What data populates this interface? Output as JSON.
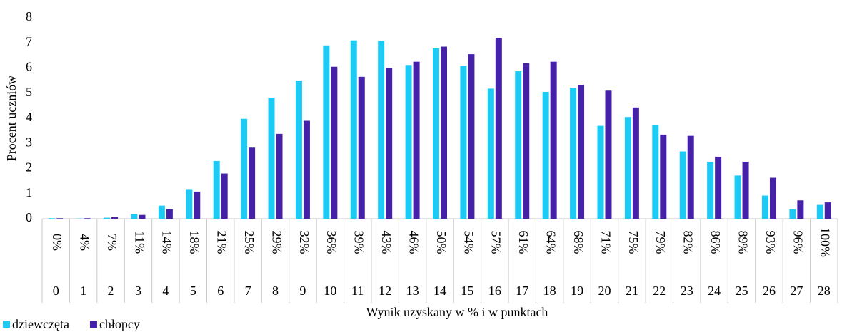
{
  "chart_data": {
    "type": "bar",
    "x_label": "Wynik uzyskany w % i w punktach",
    "y_label": "Procent uczniów",
    "categories": [
      "0",
      "1",
      "2",
      "3",
      "4",
      "5",
      "6",
      "7",
      "8",
      "9",
      "10",
      "11",
      "12",
      "13",
      "14",
      "15",
      "16",
      "17",
      "18",
      "19",
      "20",
      "21",
      "22",
      "23",
      "24",
      "25",
      "26",
      "27",
      "28"
    ],
    "category_percent_labels": [
      "0%",
      "4%",
      "7%",
      "11%",
      "14%",
      "18%",
      "21%",
      "25%",
      "29%",
      "32%",
      "36%",
      "39%",
      "43%",
      "46%",
      "50%",
      "54%",
      "57%",
      "61%",
      "64%",
      "68%",
      "71%",
      "75%",
      "79%",
      "82%",
      "86%",
      "89%",
      "93%",
      "96%",
      "100%"
    ],
    "series": [
      {
        "name": "dziewczęta",
        "color": "#1ccaf4",
        "values": [
          0.02,
          0.01,
          0.04,
          0.18,
          0.52,
          1.18,
          2.3,
          3.98,
          4.82,
          5.5,
          6.9,
          7.1,
          7.08,
          6.12,
          6.78,
          6.1,
          5.18,
          5.87,
          5.05,
          5.22,
          3.7,
          4.05,
          3.72,
          2.68,
          2.27,
          1.72,
          0.92,
          0.38,
          0.55
        ]
      },
      {
        "name": "chłopcy",
        "color": "#4421a6",
        "values": [
          0.02,
          0.02,
          0.07,
          0.15,
          0.38,
          1.08,
          1.8,
          2.83,
          3.38,
          3.9,
          6.05,
          5.65,
          6.0,
          6.25,
          6.85,
          6.55,
          7.2,
          6.2,
          6.25,
          5.33,
          5.1,
          4.43,
          3.35,
          3.3,
          2.47,
          2.27,
          1.63,
          0.73,
          0.65
        ]
      }
    ],
    "ylim": [
      0,
      8
    ],
    "yticks": [
      0,
      1,
      2,
      3,
      4,
      5,
      6,
      7,
      8
    ],
    "grid": false,
    "legend": "bottom-left"
  }
}
